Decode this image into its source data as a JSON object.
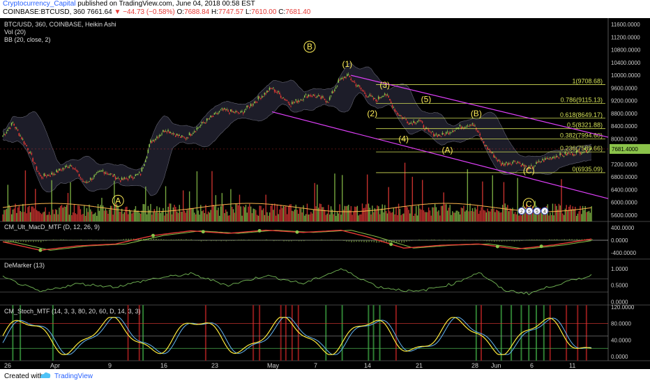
{
  "header": {
    "author": "Cryptocurrency_Capital",
    "published": "published on TradingView.com, June 04, 2018 00:58 EST",
    "symbol": "COINBASE:BTCUSD, 360",
    "last": "7661.64",
    "change": "▼ −44.73 (−0.58%)",
    "o_label": "O:",
    "o_value": "7688.84",
    "h_label": "H:",
    "h_value": "7747.57",
    "l_label": "L:",
    "l_value": "7610.00",
    "c_label": "C:",
    "c_value": "7681.40"
  },
  "footer": {
    "created_with": "Created with",
    "brand": "TradingView"
  },
  "colors": {
    "background": "#000000",
    "bull": "#8bc34a",
    "bear": "#e53935",
    "fib": "#d4e157",
    "channel": "#e040fb",
    "wave_label": "#ffee58",
    "vol_ma": "#ffb74d",
    "macd": "#e53935",
    "signal": "#8bc34a",
    "demarker": "#6aa84f",
    "stoch_k": "#ffeb3b",
    "stoch_d": "#64b5f6",
    "axis_text": "#cccccc"
  },
  "chart_data": [
    {
      "type": "line",
      "panel": "price",
      "legend": [
        "BTC/USD, 360, COINBASE, Heikin Ashi",
        "Vol (20)",
        "BB (20, close, 2)"
      ],
      "y_ticks": [
        "11600.0000",
        "11200.0000",
        "10800.0000",
        "10400.0000",
        "10000.0000",
        "9600.0000",
        "9200.0000",
        "8800.0000",
        "8400.0000",
        "8000.0000",
        "7600.0000",
        "7200.0000",
        "6800.0000",
        "6400.0000",
        "6000.0000",
        "5600.0000"
      ],
      "x_labels": [
        "26",
        "Apr",
        "9",
        "16",
        "23",
        "May",
        "7",
        "14",
        "21",
        "28",
        "Jun",
        "6",
        "11"
      ],
      "ylim": [
        5400,
        11800
      ],
      "current_price": 7681.4,
      "price_path": [
        {
          "i": 0,
          "p": 8100
        },
        {
          "i": 8,
          "p": 8500
        },
        {
          "i": 20,
          "p": 7700
        },
        {
          "i": 30,
          "p": 6800
        },
        {
          "i": 40,
          "p": 6900
        },
        {
          "i": 55,
          "p": 7200
        },
        {
          "i": 65,
          "p": 6600
        },
        {
          "i": 80,
          "p": 7000
        },
        {
          "i": 95,
          "p": 6700
        },
        {
          "i": 110,
          "p": 6900
        },
        {
          "i": 118,
          "p": 7900
        },
        {
          "i": 130,
          "p": 8300
        },
        {
          "i": 145,
          "p": 8000
        },
        {
          "i": 160,
          "p": 8500
        },
        {
          "i": 175,
          "p": 8900
        },
        {
          "i": 190,
          "p": 8800
        },
        {
          "i": 205,
          "p": 9300
        },
        {
          "i": 215,
          "p": 9600
        },
        {
          "i": 230,
          "p": 9100
        },
        {
          "i": 245,
          "p": 9400
        },
        {
          "i": 260,
          "p": 9200
        },
        {
          "i": 268,
          "p": 9800
        },
        {
          "i": 275,
          "p": 10000
        },
        {
          "i": 290,
          "p": 9400
        },
        {
          "i": 298,
          "p": 9200
        },
        {
          "i": 305,
          "p": 9450
        },
        {
          "i": 315,
          "p": 8800
        },
        {
          "i": 325,
          "p": 8500
        },
        {
          "i": 332,
          "p": 8600
        },
        {
          "i": 340,
          "p": 8200
        },
        {
          "i": 350,
          "p": 8100
        },
        {
          "i": 360,
          "p": 8300
        },
        {
          "i": 375,
          "p": 8500
        },
        {
          "i": 385,
          "p": 7800
        },
        {
          "i": 398,
          "p": 7200
        },
        {
          "i": 410,
          "p": 7300
        },
        {
          "i": 420,
          "p": 7050
        },
        {
          "i": 430,
          "p": 7300
        },
        {
          "i": 440,
          "p": 7450
        },
        {
          "i": 455,
          "p": 7550
        },
        {
          "i": 470,
          "p": 7680
        }
      ],
      "fib_levels": [
        {
          "label": "1(9708.68)",
          "value": 9708.68
        },
        {
          "label": "0.786(9115.13)",
          "value": 9115.13
        },
        {
          "label": "0.618(8649.17)",
          "value": 8649.17
        },
        {
          "label": "0.5(8321.88)",
          "value": 8321.88
        },
        {
          "label": "0.382(7994.60)",
          "value": 7994.6
        },
        {
          "label": "0.236(7589.66)",
          "value": 7589.66
        },
        {
          "label": "0(6935.09)",
          "value": 6935.09
        }
      ],
      "wave_labels": [
        "B",
        "(1)",
        "(3)",
        "(2)",
        "(5)",
        "(4)",
        "(B)",
        "(A)",
        "(C)",
        "A",
        "C"
      ]
    },
    {
      "type": "line",
      "panel": "macd",
      "legend": "CM_Ult_MacD_MTF (D, 12, 26, 9)",
      "y_ticks": [
        "400.0000",
        "0.0000",
        "-400.0000"
      ],
      "ylim": [
        -600,
        600
      ],
      "macd_path": [
        {
          "i": 0,
          "v": -50
        },
        {
          "i": 30,
          "v": -320
        },
        {
          "i": 60,
          "v": -180
        },
        {
          "i": 90,
          "v": -120
        },
        {
          "i": 120,
          "v": 150
        },
        {
          "i": 150,
          "v": 300
        },
        {
          "i": 180,
          "v": 220
        },
        {
          "i": 210,
          "v": 320
        },
        {
          "i": 240,
          "v": 250
        },
        {
          "i": 270,
          "v": 320
        },
        {
          "i": 290,
          "v": 120
        },
        {
          "i": 320,
          "v": -250
        },
        {
          "i": 350,
          "v": -160
        },
        {
          "i": 380,
          "v": -120
        },
        {
          "i": 410,
          "v": -280
        },
        {
          "i": 440,
          "v": -150
        },
        {
          "i": 470,
          "v": 40
        }
      ]
    },
    {
      "type": "line",
      "panel": "demarker",
      "legend": "DeMarker (13)",
      "y_ticks": [
        "1.0000",
        "0.5000",
        "0.0000"
      ],
      "ylim": [
        -0.1,
        1.3
      ],
      "levels": [
        0.7,
        0.3
      ],
      "path": [
        {
          "i": 0,
          "v": 0.75
        },
        {
          "i": 30,
          "v": 0.3
        },
        {
          "i": 60,
          "v": 0.55
        },
        {
          "i": 90,
          "v": 0.45
        },
        {
          "i": 120,
          "v": 0.7
        },
        {
          "i": 150,
          "v": 0.85
        },
        {
          "i": 180,
          "v": 0.5
        },
        {
          "i": 210,
          "v": 0.8
        },
        {
          "i": 240,
          "v": 0.55
        },
        {
          "i": 270,
          "v": 1.0
        },
        {
          "i": 300,
          "v": 0.45
        },
        {
          "i": 330,
          "v": 0.3
        },
        {
          "i": 360,
          "v": 0.55
        },
        {
          "i": 380,
          "v": 0.9
        },
        {
          "i": 400,
          "v": 0.35
        },
        {
          "i": 420,
          "v": 0.25
        },
        {
          "i": 440,
          "v": 0.5
        },
        {
          "i": 470,
          "v": 0.8
        }
      ]
    },
    {
      "type": "line",
      "panel": "stoch",
      "legend": "CM_Stoch_MTF (14, 3, 3, 80, 20, 60, D, 14, 3, 3)",
      "y_ticks": [
        "120.0000",
        "80.0000",
        "40.0000",
        "0.0000"
      ],
      "ylim": [
        -10,
        125
      ],
      "levels": [
        80,
        50,
        20
      ],
      "green_bars": [
        8,
        14,
        40,
        112,
        258,
        271,
        292,
        296,
        301,
        378,
        398,
        406,
        414,
        420,
        426,
        432
      ],
      "red_bars": [
        100,
        109,
        162,
        200,
        205,
        222,
        226,
        231,
        236,
        314,
        382,
        437,
        450,
        459,
        466
      ]
    }
  ]
}
